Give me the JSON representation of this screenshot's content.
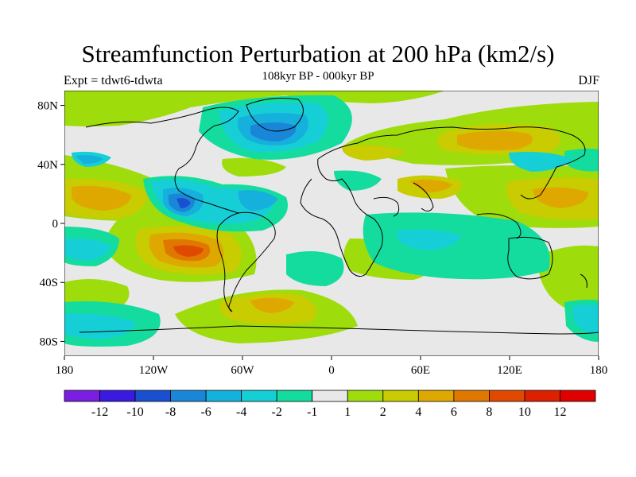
{
  "title": "Streamfunction Perturbation at 200 hPa (km2/s)",
  "subtitle": "108kyr BP - 000kyr BP",
  "left_string": "Expt = tdwt6-tdwta",
  "right_string": "DJF",
  "lat_ticks": [
    "80N",
    "40N",
    "0",
    "40S",
    "80S"
  ],
  "lon_ticks": [
    "180",
    "120W",
    "60W",
    "0",
    "60E",
    "120E",
    "180"
  ],
  "colorbar": {
    "labels": [
      "-12",
      "-10",
      "-8",
      "-6",
      "-4",
      "-2",
      "-1",
      "1",
      "2",
      "4",
      "6",
      "8",
      "10",
      "12"
    ],
    "colors": [
      "#7a1fe0",
      "#3a1adf",
      "#1a50d0",
      "#1a86d8",
      "#16b0dd",
      "#16cfd6",
      "#14dc9e",
      "#e8e8e8",
      "#9fdc0c",
      "#c8cc00",
      "#dfa800",
      "#e07800",
      "#e04a00",
      "#dc2000",
      "#e00000"
    ]
  },
  "field_colors": {
    "neutral": "#e8e8e8",
    "pos1": "#9fdc0c",
    "pos2": "#c8cc00",
    "pos3": "#dfa800",
    "pos4": "#e07800",
    "pos5": "#e04a00",
    "neg1": "#14dc9e",
    "neg2": "#16cfd6",
    "neg3": "#16b0dd",
    "neg4": "#1a86d8",
    "neg5": "#1a50d0"
  }
}
